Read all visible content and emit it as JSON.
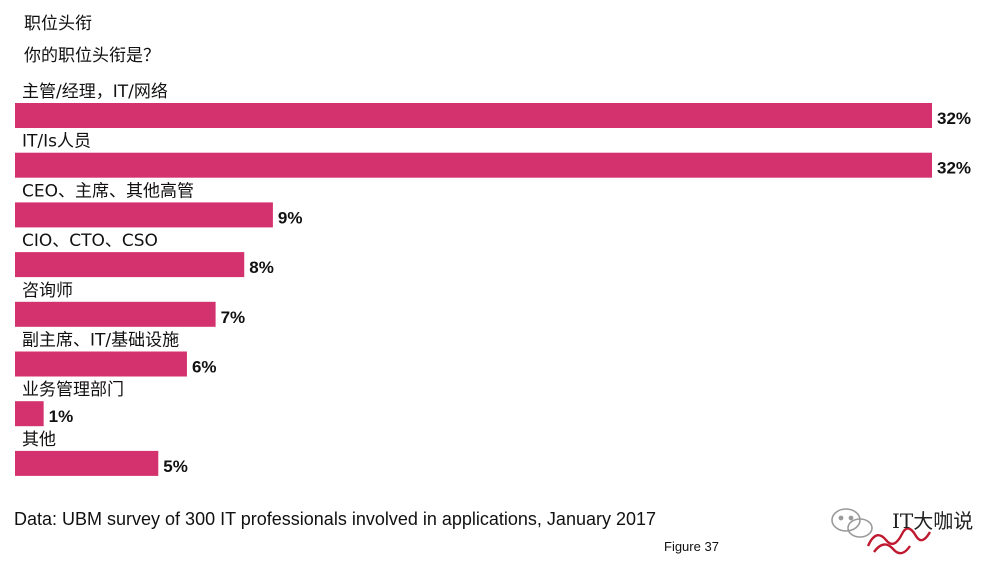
{
  "chart_data": {
    "type": "bar",
    "orientation": "horizontal",
    "title": "职位头衔",
    "subtitle": "你的职位头衔是？",
    "categories": [
      "主管/经理，IT/网络",
      "IT/Is人员",
      "CEO、主席、其他高管",
      "CIO、CTO、CSO",
      "咨询师",
      "副主席、IT/基础设施",
      "业务管理部门",
      "其他"
    ],
    "values": [
      32,
      32,
      9,
      8,
      7,
      6,
      1,
      5
    ],
    "value_labels": [
      "32%",
      "32%",
      "9%",
      "8%",
      "7%",
      "6%",
      "1%",
      "5%"
    ],
    "unit": "%",
    "xlim": [
      0,
      32
    ],
    "bar_color": "#d4326e",
    "grid": false,
    "legend": "none"
  },
  "footer": {
    "source": "Data: UBM survey of 300 IT professionals involved in applications, January 2017",
    "figure": "Figure 37"
  },
  "watermark": {
    "text": "IT大咖说",
    "icon": "wechat-logo-icon",
    "accent_color": "#c0182f"
  }
}
